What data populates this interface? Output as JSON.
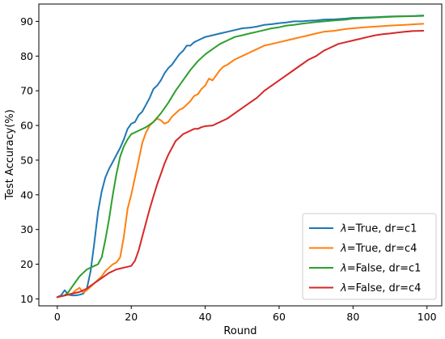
{
  "chart_data": {
    "type": "line",
    "xlabel": "Round",
    "ylabel": "Test Accuracy(%)",
    "xlim": [
      -5,
      104
    ],
    "ylim": [
      8,
      95
    ],
    "xticks": [
      0,
      20,
      40,
      60,
      80,
      100
    ],
    "yticks": [
      10,
      20,
      30,
      40,
      50,
      60,
      70,
      80,
      90
    ],
    "grid": false,
    "legend_position": "bottom-right",
    "series": [
      {
        "name": "λ=True, dr=c1",
        "legend_symbol": "λ",
        "legend_rest": "=True, dr=c1",
        "color": "#1f77b4",
        "points": [
          [
            0,
            10.5
          ],
          [
            1,
            11
          ],
          [
            2,
            12.5
          ],
          [
            3,
            11.2
          ],
          [
            4,
            11
          ],
          [
            5,
            11
          ],
          [
            6,
            11.2
          ],
          [
            7,
            11.5
          ],
          [
            8,
            13
          ],
          [
            9,
            18
          ],
          [
            10,
            26
          ],
          [
            11,
            35
          ],
          [
            12,
            41
          ],
          [
            13,
            45
          ],
          [
            14,
            47.5
          ],
          [
            15,
            49.5
          ],
          [
            16,
            51.5
          ],
          [
            17,
            53.5
          ],
          [
            18,
            56
          ],
          [
            19,
            59
          ],
          [
            20,
            60.5
          ],
          [
            21,
            61
          ],
          [
            22,
            63
          ],
          [
            23,
            64
          ],
          [
            24,
            66
          ],
          [
            25,
            68
          ],
          [
            26,
            70.5
          ],
          [
            27,
            71.5
          ],
          [
            28,
            73
          ],
          [
            29,
            75
          ],
          [
            30,
            76.5
          ],
          [
            31,
            77.5
          ],
          [
            32,
            79
          ],
          [
            33,
            80.5
          ],
          [
            34,
            81.5
          ],
          [
            35,
            83
          ],
          [
            36,
            83
          ],
          [
            37,
            84
          ],
          [
            38,
            84.5
          ],
          [
            39,
            85
          ],
          [
            40,
            85.5
          ],
          [
            42,
            86
          ],
          [
            44,
            86.5
          ],
          [
            46,
            87
          ],
          [
            48,
            87.5
          ],
          [
            50,
            88
          ],
          [
            52,
            88.2
          ],
          [
            54,
            88.5
          ],
          [
            56,
            89
          ],
          [
            58,
            89.2
          ],
          [
            60,
            89.5
          ],
          [
            62,
            89.7
          ],
          [
            64,
            90
          ],
          [
            66,
            90
          ],
          [
            68,
            90.2
          ],
          [
            70,
            90.3
          ],
          [
            72,
            90.5
          ],
          [
            75,
            90.6
          ],
          [
            78,
            90.8
          ],
          [
            80,
            91
          ],
          [
            83,
            91.1
          ],
          [
            86,
            91.2
          ],
          [
            90,
            91.4
          ],
          [
            94,
            91.5
          ],
          [
            97,
            91.6
          ],
          [
            99,
            91.7
          ]
        ]
      },
      {
        "name": "λ=True, dr=c4",
        "legend_symbol": "λ",
        "legend_rest": "=True, dr=c4",
        "color": "#ff7f0e",
        "points": [
          [
            0,
            10.5
          ],
          [
            2,
            11
          ],
          [
            4,
            11.5
          ],
          [
            5,
            12.5
          ],
          [
            6,
            13.2
          ],
          [
            7,
            11.8
          ],
          [
            8,
            12.5
          ],
          [
            9,
            13.5
          ],
          [
            10,
            14.5
          ],
          [
            11,
            15.5
          ],
          [
            12,
            16.5
          ],
          [
            13,
            18
          ],
          [
            14,
            19
          ],
          [
            15,
            20
          ],
          [
            16,
            20.5
          ],
          [
            17,
            22
          ],
          [
            18,
            28
          ],
          [
            19,
            36
          ],
          [
            20,
            40
          ],
          [
            21,
            45
          ],
          [
            22,
            50
          ],
          [
            23,
            55
          ],
          [
            24,
            58
          ],
          [
            25,
            60
          ],
          [
            26,
            61
          ],
          [
            27,
            62
          ],
          [
            28,
            61.5
          ],
          [
            29,
            60.5
          ],
          [
            30,
            61
          ],
          [
            31,
            62.5
          ],
          [
            32,
            63.5
          ],
          [
            33,
            64.5
          ],
          [
            34,
            65
          ],
          [
            35,
            66
          ],
          [
            36,
            67
          ],
          [
            37,
            68.5
          ],
          [
            38,
            69
          ],
          [
            39,
            70.5
          ],
          [
            40,
            71.5
          ],
          [
            41,
            73.5
          ],
          [
            42,
            73
          ],
          [
            43,
            74.5
          ],
          [
            44,
            76
          ],
          [
            45,
            77
          ],
          [
            46,
            77.5
          ],
          [
            48,
            79
          ],
          [
            50,
            80
          ],
          [
            52,
            81
          ],
          [
            54,
            82
          ],
          [
            56,
            83
          ],
          [
            58,
            83.5
          ],
          [
            60,
            84
          ],
          [
            62,
            84.5
          ],
          [
            64,
            85
          ],
          [
            66,
            85.5
          ],
          [
            68,
            86
          ],
          [
            70,
            86.5
          ],
          [
            72,
            87
          ],
          [
            75,
            87.3
          ],
          [
            78,
            87.8
          ],
          [
            80,
            88
          ],
          [
            83,
            88.3
          ],
          [
            86,
            88.5
          ],
          [
            90,
            88.8
          ],
          [
            94,
            89
          ],
          [
            97,
            89.2
          ],
          [
            99,
            89.3
          ]
        ]
      },
      {
        "name": "λ=False, dr=c1",
        "legend_symbol": "λ",
        "legend_rest": "=False, dr=c1",
        "color": "#2ca02c",
        "points": [
          [
            0,
            10.5
          ],
          [
            2,
            11
          ],
          [
            3,
            12
          ],
          [
            4,
            13.5
          ],
          [
            5,
            15
          ],
          [
            6,
            16.5
          ],
          [
            7,
            17.5
          ],
          [
            8,
            18.5
          ],
          [
            9,
            19
          ],
          [
            10,
            19.5
          ],
          [
            11,
            20
          ],
          [
            12,
            22
          ],
          [
            13,
            27
          ],
          [
            14,
            33
          ],
          [
            15,
            40
          ],
          [
            16,
            46
          ],
          [
            17,
            51
          ],
          [
            18,
            54
          ],
          [
            19,
            56
          ],
          [
            20,
            57.5
          ],
          [
            22,
            58.5
          ],
          [
            24,
            59.5
          ],
          [
            26,
            61
          ],
          [
            28,
            63.5
          ],
          [
            30,
            66.5
          ],
          [
            32,
            70
          ],
          [
            34,
            73
          ],
          [
            36,
            76
          ],
          [
            38,
            78.5
          ],
          [
            40,
            80.5
          ],
          [
            42,
            82
          ],
          [
            44,
            83.5
          ],
          [
            46,
            84.5
          ],
          [
            48,
            85.5
          ],
          [
            50,
            86
          ],
          [
            52,
            86.5
          ],
          [
            54,
            87
          ],
          [
            56,
            87.5
          ],
          [
            58,
            88
          ],
          [
            60,
            88.3
          ],
          [
            62,
            88.8
          ],
          [
            64,
            89
          ],
          [
            66,
            89.3
          ],
          [
            70,
            89.8
          ],
          [
            74,
            90.2
          ],
          [
            78,
            90.5
          ],
          [
            80,
            90.8
          ],
          [
            84,
            91
          ],
          [
            88,
            91.2
          ],
          [
            92,
            91.4
          ],
          [
            96,
            91.5
          ],
          [
            99,
            91.6
          ]
        ]
      },
      {
        "name": "λ=False, dr=c4",
        "legend_symbol": "λ",
        "legend_rest": "=False, dr=c4",
        "color": "#d62728",
        "points": [
          [
            0,
            10.5
          ],
          [
            2,
            11
          ],
          [
            4,
            11.5
          ],
          [
            6,
            12
          ],
          [
            8,
            13
          ],
          [
            10,
            14.5
          ],
          [
            12,
            16
          ],
          [
            14,
            17.5
          ],
          [
            16,
            18.5
          ],
          [
            18,
            19
          ],
          [
            20,
            19.5
          ],
          [
            21,
            21
          ],
          [
            22,
            24
          ],
          [
            23,
            28
          ],
          [
            24,
            32
          ],
          [
            25,
            36
          ],
          [
            26,
            39.5
          ],
          [
            27,
            43
          ],
          [
            28,
            46
          ],
          [
            29,
            49
          ],
          [
            30,
            51.5
          ],
          [
            31,
            53.5
          ],
          [
            32,
            55.5
          ],
          [
            33,
            56.5
          ],
          [
            34,
            57.5
          ],
          [
            35,
            58
          ],
          [
            36,
            58.5
          ],
          [
            37,
            59
          ],
          [
            38,
            59
          ],
          [
            39,
            59.5
          ],
          [
            40,
            59.8
          ],
          [
            42,
            60
          ],
          [
            44,
            61
          ],
          [
            46,
            62
          ],
          [
            48,
            63.5
          ],
          [
            50,
            65
          ],
          [
            52,
            66.5
          ],
          [
            54,
            68
          ],
          [
            56,
            70
          ],
          [
            58,
            71.5
          ],
          [
            60,
            73
          ],
          [
            62,
            74.5
          ],
          [
            64,
            76
          ],
          [
            66,
            77.5
          ],
          [
            68,
            79
          ],
          [
            70,
            80
          ],
          [
            72,
            81.5
          ],
          [
            74,
            82.5
          ],
          [
            76,
            83.5
          ],
          [
            78,
            84
          ],
          [
            80,
            84.5
          ],
          [
            82,
            85
          ],
          [
            84,
            85.5
          ],
          [
            86,
            86
          ],
          [
            88,
            86.3
          ],
          [
            90,
            86.5
          ],
          [
            92,
            86.8
          ],
          [
            94,
            87
          ],
          [
            96,
            87.2
          ],
          [
            99,
            87.3
          ]
        ]
      }
    ]
  }
}
